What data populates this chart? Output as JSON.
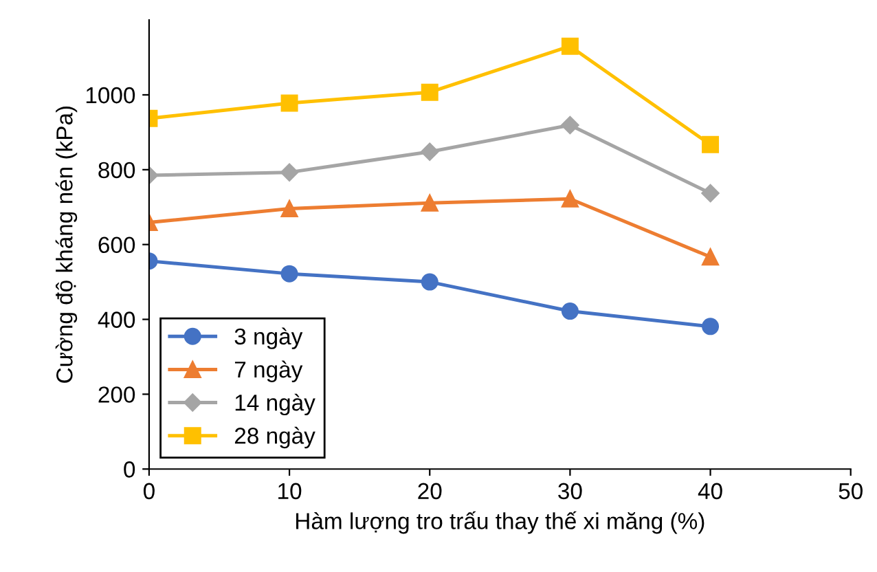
{
  "chart_data": {
    "type": "line",
    "xlabel": "Hàm lượng tro trấu thay thế xi măng (%)",
    "ylabel": "Cường độ kháng nén (kPa)",
    "x": [
      0,
      10,
      20,
      30,
      40
    ],
    "series": [
      {
        "name": "3 ngày",
        "color": "#4472c4",
        "marker": "circle",
        "values": [
          556,
          522,
          500,
          422,
          381
        ]
      },
      {
        "name": "7 ngày",
        "color": "#ed7d31",
        "marker": "triangle",
        "values": [
          659,
          696,
          711,
          722,
          567
        ]
      },
      {
        "name": "14 ngày",
        "color": "#a5a5a5",
        "marker": "diamond",
        "values": [
          785,
          793,
          848,
          919,
          737
        ]
      },
      {
        "name": "28 ngày",
        "color": "#ffc000",
        "marker": "square",
        "values": [
          937,
          978,
          1007,
          1130,
          867
        ]
      }
    ],
    "xlim": [
      0,
      50
    ],
    "xticks": [
      0,
      10,
      20,
      30,
      40,
      50
    ],
    "ylim": [
      0,
      1200
    ],
    "yticks": [
      0,
      200,
      400,
      600,
      800,
      1000
    ],
    "grid": false,
    "legend": "bottom left",
    "line_style": "solid"
  }
}
